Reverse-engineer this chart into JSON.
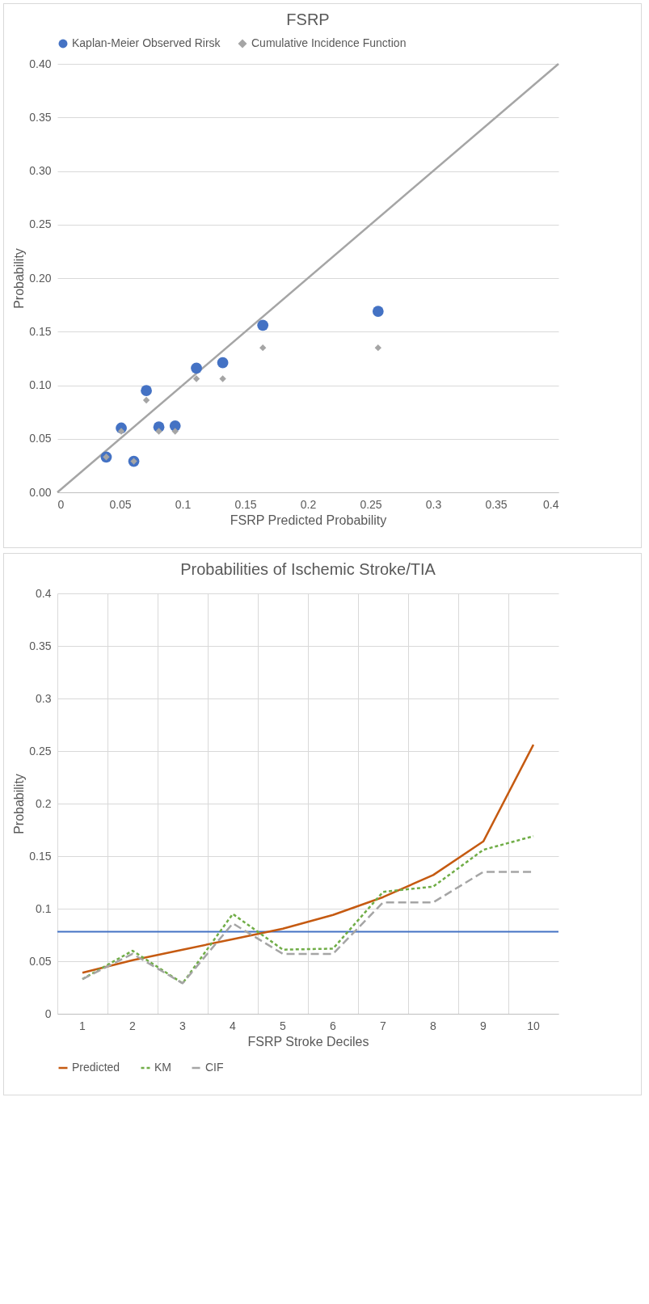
{
  "chart_data": [
    {
      "type": "scatter",
      "title": "FSRP",
      "xlabel": "FSRP Predicted Probability",
      "ylabel": "Probability",
      "legend": "top",
      "grid": "y",
      "xlim": [
        0,
        0.4
      ],
      "xticks": [
        0,
        0.05,
        0.1,
        0.15,
        0.2,
        0.25,
        0.3,
        0.35,
        0.4
      ],
      "ylim": [
        0,
        0.4
      ],
      "yticks": [
        {
          "value": 0,
          "label": "0.00"
        },
        {
          "value": 0.05,
          "label": "0.05"
        },
        {
          "value": 0.1,
          "label": "0.10"
        },
        {
          "value": 0.15,
          "label": "0.15"
        },
        {
          "value": 0.2,
          "label": "0.20"
        },
        {
          "value": 0.25,
          "label": "0.25"
        },
        {
          "value": 0.3,
          "label": "0.30"
        },
        {
          "value": 0.35,
          "label": "0.35"
        },
        {
          "value": 0.4,
          "label": "0.40"
        }
      ],
      "series": [
        {
          "type": "line",
          "color": "#a5a5a5",
          "x": [
            0,
            0.4
          ],
          "values": [
            0,
            0.4
          ],
          "marker": "none",
          "line_style": "solid"
        },
        {
          "name": "Kaplan-Meier Observed Rirsk",
          "color": "#4472c4",
          "marker": "circle",
          "x": [
            0.039,
            0.051,
            0.061,
            0.071,
            0.081,
            0.094,
            0.111,
            0.132,
            0.164,
            0.256
          ],
          "values": [
            0.033,
            0.06,
            0.029,
            0.095,
            0.061,
            0.062,
            0.116,
            0.121,
            0.156,
            0.169
          ]
        },
        {
          "name": "Cumulative Incidence Function",
          "color": "#a5a5a5",
          "marker": "diamond",
          "x": [
            0.039,
            0.051,
            0.061,
            0.071,
            0.081,
            0.094,
            0.111,
            0.132,
            0.164,
            0.256
          ],
          "values": [
            0.033,
            0.057,
            0.029,
            0.086,
            0.057,
            0.057,
            0.106,
            0.106,
            0.135,
            0.135
          ]
        }
      ]
    },
    {
      "type": "line",
      "title": "Probabilities of Ischemic Stroke/TIA",
      "xlabel": "FSRP Stroke Deciles",
      "ylabel": "Probability",
      "legend": "bottom",
      "grid": true,
      "marker": "none",
      "categories": [
        "1",
        "2",
        "3",
        "4",
        "5",
        "6",
        "7",
        "8",
        "9",
        "10"
      ],
      "ylim": [
        0,
        0.4
      ],
      "yticks": [
        0,
        0.05,
        0.1,
        0.15,
        0.2,
        0.25,
        0.3,
        0.35,
        0.4
      ],
      "ref_lines": [
        {
          "axis": "y",
          "value": 0.078,
          "color": "#4472c4"
        }
      ],
      "series": [
        {
          "name": "Predicted",
          "color": "#c55a11",
          "line_style": "solid",
          "values": [
            0.039,
            0.051,
            0.061,
            0.071,
            0.081,
            0.094,
            0.111,
            0.132,
            0.164,
            0.256
          ]
        },
        {
          "name": "KM",
          "color": "#70ad47",
          "line_style": "dashed",
          "values": [
            0.033,
            0.06,
            0.029,
            0.095,
            0.061,
            0.062,
            0.116,
            0.121,
            0.156,
            0.169
          ]
        },
        {
          "name": "CIF",
          "color": "#a5a5a5",
          "line_style": "longdash",
          "values": [
            0.033,
            0.057,
            0.029,
            0.086,
            0.057,
            0.057,
            0.106,
            0.106,
            0.135,
            0.135
          ]
        }
      ]
    }
  ]
}
